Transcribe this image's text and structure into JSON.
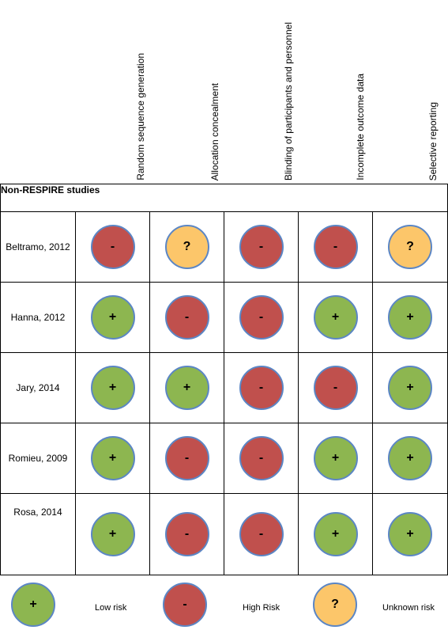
{
  "columns": [
    {
      "key": "random",
      "label": "Random sequence generation"
    },
    {
      "key": "allocation",
      "label": "Allocation concealment"
    },
    {
      "key": "blinding",
      "label": "Blinding of participants and personnel"
    },
    {
      "key": "incomplete",
      "label": "Incomplete outcome data"
    },
    {
      "key": "selective",
      "label": "Selective reporting"
    }
  ],
  "section_title": "Non-RESPIRE studies",
  "symbols": {
    "low": "+",
    "high": "-",
    "unknown": "?"
  },
  "colors": {
    "low": "#8db650",
    "high": "#c0504d",
    "unknown": "#fcc66a",
    "outline": "#5b86c5"
  },
  "studies": [
    {
      "name": "Beltramo, 2012",
      "ratings": [
        "high",
        "unknown",
        "high",
        "high",
        "unknown"
      ]
    },
    {
      "name": "Hanna, 2012",
      "ratings": [
        "low",
        "high",
        "high",
        "low",
        "low"
      ]
    },
    {
      "name": "Jary, 2014",
      "ratings": [
        "low",
        "low",
        "high",
        "high",
        "low"
      ]
    },
    {
      "name": "Romieu, 2009",
      "ratings": [
        "low",
        "high",
        "high",
        "low",
        "low"
      ]
    },
    {
      "name": "Rosa, 2014",
      "ratings": [
        "low",
        "high",
        "high",
        "low",
        "low"
      ]
    }
  ],
  "legend": [
    {
      "rating": "low",
      "label": "Low risk"
    },
    {
      "rating": "high",
      "label": "High Risk"
    },
    {
      "rating": "unknown",
      "label": "Unknown risk"
    }
  ]
}
